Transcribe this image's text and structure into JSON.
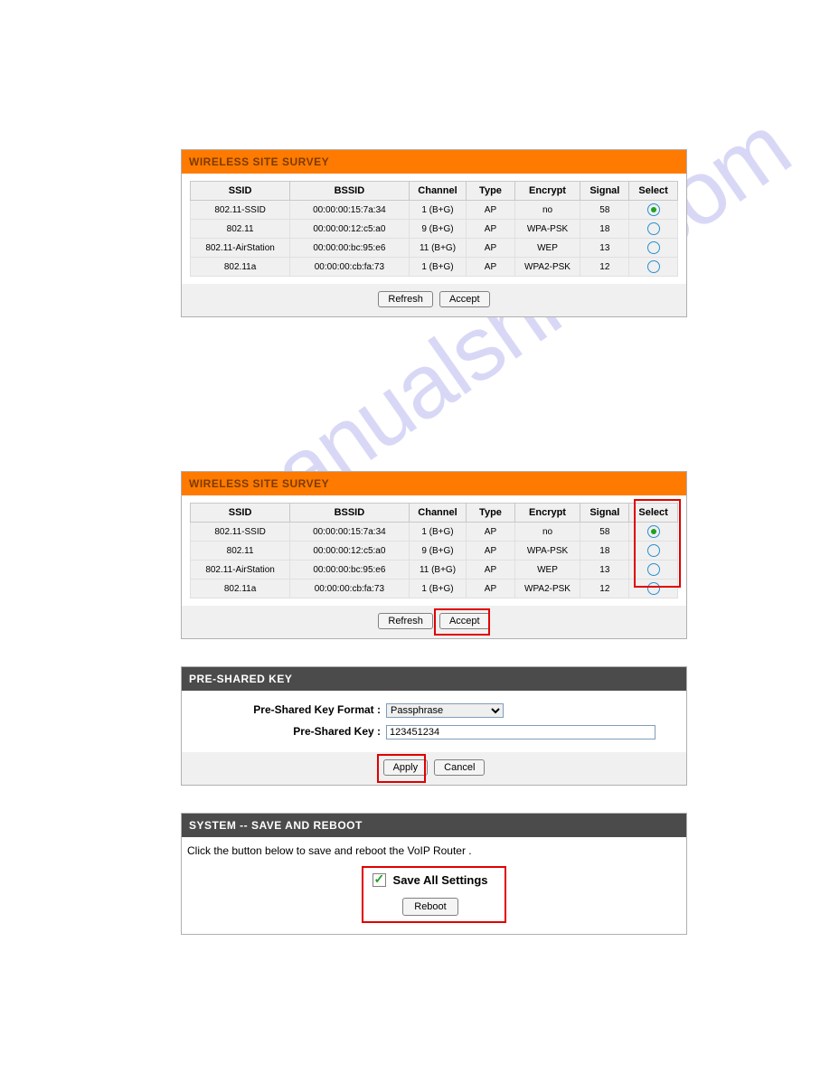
{
  "survey1": {
    "title": "WIRELESS SITE SURVEY",
    "columns": [
      "SSID",
      "BSSID",
      "Channel",
      "Type",
      "Encrypt",
      "Signal",
      "Select"
    ],
    "rows": [
      {
        "ssid": "802.11-SSID",
        "bssid": "00:00:00:15:7a:34",
        "channel": "1 (B+G)",
        "type": "AP",
        "encrypt": "no",
        "signal": "58",
        "selected": true
      },
      {
        "ssid": "802.11",
        "bssid": "00:00:00:12:c5:a0",
        "channel": "9 (B+G)",
        "type": "AP",
        "encrypt": "WPA-PSK",
        "signal": "18",
        "selected": false
      },
      {
        "ssid": "802.11-AirStation",
        "bssid": "00:00:00:bc:95:e6",
        "channel": "11 (B+G)",
        "type": "AP",
        "encrypt": "WEP",
        "signal": "13",
        "selected": false
      },
      {
        "ssid": "802.11a",
        "bssid": "00:00:00:cb:fa:73",
        "channel": "1 (B+G)",
        "type": "AP",
        "encrypt": "WPA2-PSK",
        "signal": "12",
        "selected": false
      }
    ],
    "refresh_label": "Refresh",
    "accept_label": "Accept"
  },
  "survey2": {
    "title": "WIRELESS SITE SURVEY",
    "columns": [
      "SSID",
      "BSSID",
      "Channel",
      "Type",
      "Encrypt",
      "Signal",
      "Select"
    ],
    "rows": [
      {
        "ssid": "802.11-SSID",
        "bssid": "00:00:00:15:7a:34",
        "channel": "1 (B+G)",
        "type": "AP",
        "encrypt": "no",
        "signal": "58",
        "selected": true
      },
      {
        "ssid": "802.11",
        "bssid": "00:00:00:12:c5:a0",
        "channel": "9 (B+G)",
        "type": "AP",
        "encrypt": "WPA-PSK",
        "signal": "18",
        "selected": false
      },
      {
        "ssid": "802.11-AirStation",
        "bssid": "00:00:00:bc:95:e6",
        "channel": "11 (B+G)",
        "type": "AP",
        "encrypt": "WEP",
        "signal": "13",
        "selected": false
      },
      {
        "ssid": "802.11a",
        "bssid": "00:00:00:cb:fa:73",
        "channel": "1 (B+G)",
        "type": "AP",
        "encrypt": "WPA2-PSK",
        "signal": "12",
        "selected": false
      }
    ],
    "refresh_label": "Refresh",
    "accept_label": "Accept"
  },
  "psk": {
    "title": "PRE-SHARED KEY",
    "format_label": "Pre-Shared Key Format :",
    "format_value": "Passphrase",
    "key_label": "Pre-Shared Key :",
    "key_value": "123451234",
    "apply_label": "Apply",
    "cancel_label": "Cancel"
  },
  "system": {
    "title": "SYSTEM -- SAVE AND REBOOT",
    "instruction": "Click the button below to save and reboot the VoIP Router .",
    "save_all_label": "Save All Settings",
    "save_all_checked": true,
    "reboot_label": "Reboot"
  }
}
